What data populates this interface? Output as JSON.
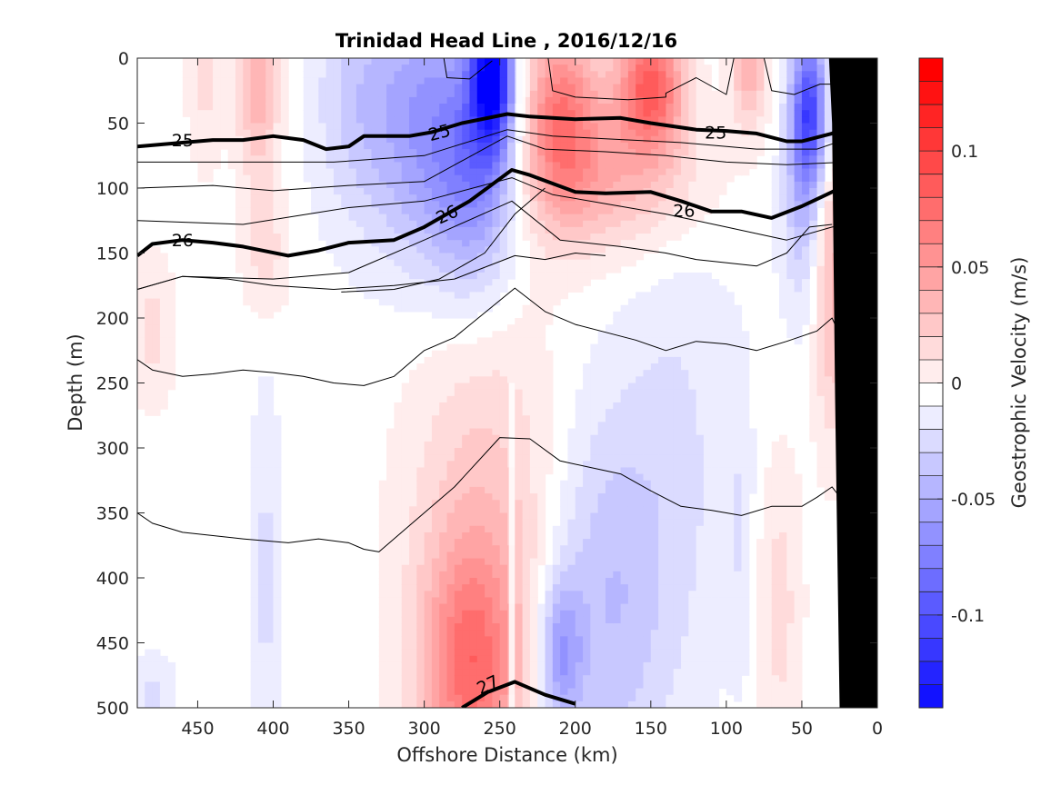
{
  "chart_data": {
    "type": "heatmap",
    "title": "Trinidad Head Line , 2016/12/16",
    "xlabel": "Offshore Distance (km)",
    "ylabel": "Depth (m)",
    "colorbar_label": "Geostrophic Velocity (m/s)",
    "xlim": [
      490,
      0
    ],
    "ylim": [
      0,
      500
    ],
    "x_reversed": true,
    "y_reversed": true,
    "x_ticks": [
      450,
      400,
      350,
      300,
      250,
      200,
      150,
      100,
      50,
      0
    ],
    "y_ticks": [
      0,
      50,
      100,
      150,
      200,
      250,
      300,
      350,
      400,
      450,
      500
    ],
    "colorbar": {
      "range": [
        -0.14,
        0.14
      ],
      "step": 0.01,
      "ticks": [
        0.1,
        0.05,
        0,
        -0.05,
        -0.1
      ],
      "tick_labels": [
        "0.1",
        "0.05",
        "0",
        "-0.05",
        "-0.1"
      ],
      "positive_color": "#ff0000",
      "negative_color": "#0000ff",
      "zero_color": "#ffffff"
    },
    "velocity_cores": [
      {
        "x": 445,
        "y": 0,
        "z": 0.02,
        "rx": 12,
        "ry": 80
      },
      {
        "x": 410,
        "y": 15,
        "z": 0.045,
        "rx": 14,
        "ry": 75
      },
      {
        "x": 405,
        "y": 150,
        "z": 0.02,
        "rx": 15,
        "ry": 50
      },
      {
        "x": 480,
        "y": 210,
        "z": 0.018,
        "rx": 15,
        "ry": 60
      },
      {
        "x": 345,
        "y": 30,
        "z": -0.025,
        "rx": 30,
        "ry": 100
      },
      {
        "x": 300,
        "y": 50,
        "z": -0.05,
        "rx": 35,
        "ry": 110
      },
      {
        "x": 255,
        "y": 10,
        "z": -0.13,
        "rx": 14,
        "ry": 60
      },
      {
        "x": 265,
        "y": 90,
        "z": -0.06,
        "rx": 28,
        "ry": 90
      },
      {
        "x": 210,
        "y": 40,
        "z": 0.065,
        "rx": 25,
        "ry": 75
      },
      {
        "x": 150,
        "y": 20,
        "z": 0.085,
        "rx": 22,
        "ry": 50
      },
      {
        "x": 175,
        "y": 90,
        "z": 0.04,
        "rx": 60,
        "ry": 60
      },
      {
        "x": 85,
        "y": 10,
        "z": 0.04,
        "rx": 12,
        "ry": 45
      },
      {
        "x": 45,
        "y": 40,
        "z": -0.1,
        "rx": 12,
        "ry": 60
      },
      {
        "x": 50,
        "y": 120,
        "z": -0.03,
        "rx": 14,
        "ry": 80
      },
      {
        "x": 30,
        "y": 170,
        "z": 0.04,
        "rx": 12,
        "ry": 120
      },
      {
        "x": 260,
        "y": 400,
        "z": 0.035,
        "rx": 50,
        "ry": 200
      },
      {
        "x": 270,
        "y": 470,
        "z": 0.055,
        "rx": 30,
        "ry": 90
      },
      {
        "x": 180,
        "y": 420,
        "z": -0.035,
        "rx": 40,
        "ry": 150
      },
      {
        "x": 210,
        "y": 460,
        "z": -0.05,
        "rx": 15,
        "ry": 60
      },
      {
        "x": 130,
        "y": 300,
        "z": -0.015,
        "rx": 40,
        "ry": 200
      },
      {
        "x": 405,
        "y": 400,
        "z": -0.018,
        "rx": 10,
        "ry": 150
      },
      {
        "x": 480,
        "y": 490,
        "z": -0.018,
        "rx": 15,
        "ry": 30
      },
      {
        "x": 65,
        "y": 420,
        "z": 0.02,
        "rx": 15,
        "ry": 120
      },
      {
        "x": 90,
        "y": 370,
        "z": -0.012,
        "rx": 8,
        "ry": 110
      }
    ],
    "velocity_features": [
      {
        "x": 236,
        "y": 0,
        "z": 0.0,
        "rx": 3,
        "ry": 60
      },
      {
        "x": 242,
        "y": 250,
        "z": 0.0,
        "rx": 2,
        "ry": 250
      }
    ],
    "contours": [
      {
        "label": "",
        "bold": false,
        "points": [
          [
            287,
            0
          ],
          [
            285,
            15
          ],
          [
            270,
            16
          ],
          [
            255,
            2
          ]
        ]
      },
      {
        "label": "",
        "bold": false,
        "points": [
          [
            218,
            0
          ],
          [
            215,
            25
          ],
          [
            200,
            30
          ],
          [
            165,
            32
          ],
          [
            140,
            30
          ],
          [
            140,
            27
          ],
          [
            120,
            15
          ],
          [
            100,
            28
          ],
          [
            95,
            0
          ]
        ]
      },
      {
        "label": "",
        "bold": false,
        "points": [
          [
            75,
            0
          ],
          [
            70,
            25
          ],
          [
            55,
            28
          ],
          [
            38,
            20
          ],
          [
            30,
            20
          ]
        ]
      },
      {
        "label": "25",
        "bold": true,
        "label_pos": [
          460,
          63
        ],
        "label_rotate": 0,
        "points": [
          [
            490,
            68
          ],
          [
            470,
            66
          ],
          [
            440,
            63
          ],
          [
            420,
            63
          ],
          [
            400,
            60
          ],
          [
            380,
            63
          ],
          [
            365,
            70
          ],
          [
            350,
            68
          ],
          [
            340,
            60
          ],
          [
            310,
            60
          ],
          [
            295,
            57
          ],
          [
            275,
            50
          ],
          [
            245,
            43
          ],
          [
            230,
            45
          ],
          [
            200,
            47
          ],
          [
            170,
            46
          ],
          [
            150,
            50
          ],
          [
            120,
            55
          ],
          [
            100,
            56
          ],
          [
            80,
            58
          ],
          [
            60,
            64
          ],
          [
            50,
            64
          ],
          [
            30,
            58
          ],
          [
            18,
            52
          ]
        ]
      },
      {
        "label": "",
        "bold": false,
        "points": [
          [
            490,
            80
          ],
          [
            360,
            80
          ],
          [
            300,
            75
          ],
          [
            245,
            55
          ],
          [
            215,
            60
          ],
          [
            180,
            62
          ],
          [
            130,
            65
          ],
          [
            80,
            70
          ],
          [
            40,
            70
          ],
          [
            20,
            62
          ]
        ]
      },
      {
        "label": "",
        "bold": false,
        "points": [
          [
            490,
            100
          ],
          [
            440,
            98
          ],
          [
            400,
            102
          ],
          [
            350,
            98
          ],
          [
            300,
            95
          ],
          [
            245,
            60
          ],
          [
            220,
            70
          ],
          [
            180,
            72
          ],
          [
            140,
            75
          ],
          [
            100,
            80
          ],
          [
            60,
            82
          ],
          [
            20,
            80
          ]
        ]
      },
      {
        "label": "26",
        "bold": true,
        "label_pos": [
          460,
          140
        ],
        "label_rotate": 0,
        "points": [
          [
            490,
            152
          ],
          [
            480,
            143
          ],
          [
            460,
            140
          ],
          [
            440,
            142
          ],
          [
            420,
            145
          ],
          [
            390,
            152
          ],
          [
            370,
            148
          ],
          [
            350,
            142
          ],
          [
            320,
            140
          ],
          [
            300,
            130
          ],
          [
            270,
            110
          ],
          [
            242,
            86
          ],
          [
            230,
            90
          ],
          [
            200,
            103
          ],
          [
            180,
            104
          ],
          [
            150,
            103
          ],
          [
            130,
            110
          ],
          [
            110,
            118
          ],
          [
            90,
            118
          ],
          [
            70,
            123
          ],
          [
            50,
            114
          ],
          [
            30,
            103
          ],
          [
            18,
            96
          ]
        ]
      },
      {
        "label": "",
        "bold": false,
        "points": [
          [
            490,
            125
          ],
          [
            420,
            128
          ],
          [
            350,
            115
          ],
          [
            300,
            110
          ],
          [
            242,
            92
          ],
          [
            215,
            105
          ],
          [
            180,
            112
          ],
          [
            140,
            120
          ],
          [
            100,
            130
          ],
          [
            60,
            140
          ],
          [
            30,
            130
          ],
          [
            18,
            128
          ]
        ]
      },
      {
        "label": "",
        "bold": false,
        "points": [
          [
            490,
            178
          ],
          [
            460,
            168
          ],
          [
            400,
            170
          ],
          [
            350,
            165
          ],
          [
            300,
            140
          ],
          [
            242,
            110
          ],
          [
            210,
            140
          ],
          [
            170,
            145
          ],
          [
            140,
            150
          ],
          [
            120,
            155
          ],
          [
            80,
            160
          ],
          [
            60,
            150
          ],
          [
            45,
            130
          ],
          [
            30,
            128
          ]
        ]
      },
      {
        "label": "",
        "bold": false,
        "points": [
          [
            490,
            178
          ],
          [
            460,
            168
          ],
          [
            430,
            170
          ],
          [
            400,
            175
          ],
          [
            360,
            178
          ],
          [
            320,
            175
          ],
          [
            280,
            170
          ],
          [
            240,
            152
          ],
          [
            220,
            155
          ],
          [
            200,
            150
          ],
          [
            180,
            152
          ]
        ]
      },
      {
        "label": "",
        "bold": false,
        "points": [
          [
            355,
            180
          ],
          [
            320,
            178
          ],
          [
            290,
            170
          ],
          [
            260,
            150
          ],
          [
            240,
            120
          ],
          [
            220,
            100
          ]
        ]
      },
      {
        "label": "",
        "bold": false,
        "points": [
          [
            490,
            232
          ],
          [
            480,
            240
          ],
          [
            460,
            245
          ],
          [
            440,
            243
          ],
          [
            420,
            240
          ],
          [
            400,
            242
          ],
          [
            380,
            245
          ],
          [
            360,
            250
          ],
          [
            340,
            252
          ],
          [
            320,
            245
          ],
          [
            300,
            225
          ],
          [
            280,
            215
          ],
          [
            240,
            177
          ],
          [
            220,
            195
          ],
          [
            200,
            205
          ],
          [
            160,
            217
          ],
          [
            140,
            225
          ],
          [
            120,
            218
          ],
          [
            100,
            220
          ],
          [
            80,
            225
          ],
          [
            60,
            218
          ],
          [
            40,
            210
          ],
          [
            30,
            200
          ],
          [
            20,
            225
          ]
        ]
      },
      {
        "label": "",
        "bold": false,
        "points": [
          [
            490,
            350
          ],
          [
            480,
            358
          ],
          [
            460,
            365
          ],
          [
            420,
            370
          ],
          [
            390,
            373
          ],
          [
            370,
            370
          ],
          [
            350,
            373
          ],
          [
            340,
            378
          ],
          [
            330,
            380
          ],
          [
            310,
            360
          ],
          [
            280,
            330
          ],
          [
            250,
            292
          ],
          [
            230,
            293
          ],
          [
            210,
            310
          ],
          [
            190,
            315
          ],
          [
            170,
            320
          ],
          [
            150,
            333
          ],
          [
            130,
            345
          ],
          [
            110,
            348
          ],
          [
            90,
            352
          ],
          [
            70,
            345
          ],
          [
            50,
            345
          ],
          [
            40,
            338
          ],
          [
            30,
            330
          ],
          [
            20,
            345
          ]
        ]
      },
      {
        "label": "27",
        "bold": true,
        "label_pos": [
          258,
          482
        ],
        "label_rotate": -25,
        "points": [
          [
            275,
            500
          ],
          [
            258,
            488
          ],
          [
            240,
            480
          ],
          [
            220,
            490
          ],
          [
            200,
            497
          ]
        ]
      }
    ],
    "bathymetry": [
      [
        0,
        0
      ],
      [
        0,
        500
      ],
      [
        25,
        500
      ],
      [
        28,
        260
      ],
      [
        30,
        50
      ],
      [
        32,
        0
      ]
    ]
  }
}
